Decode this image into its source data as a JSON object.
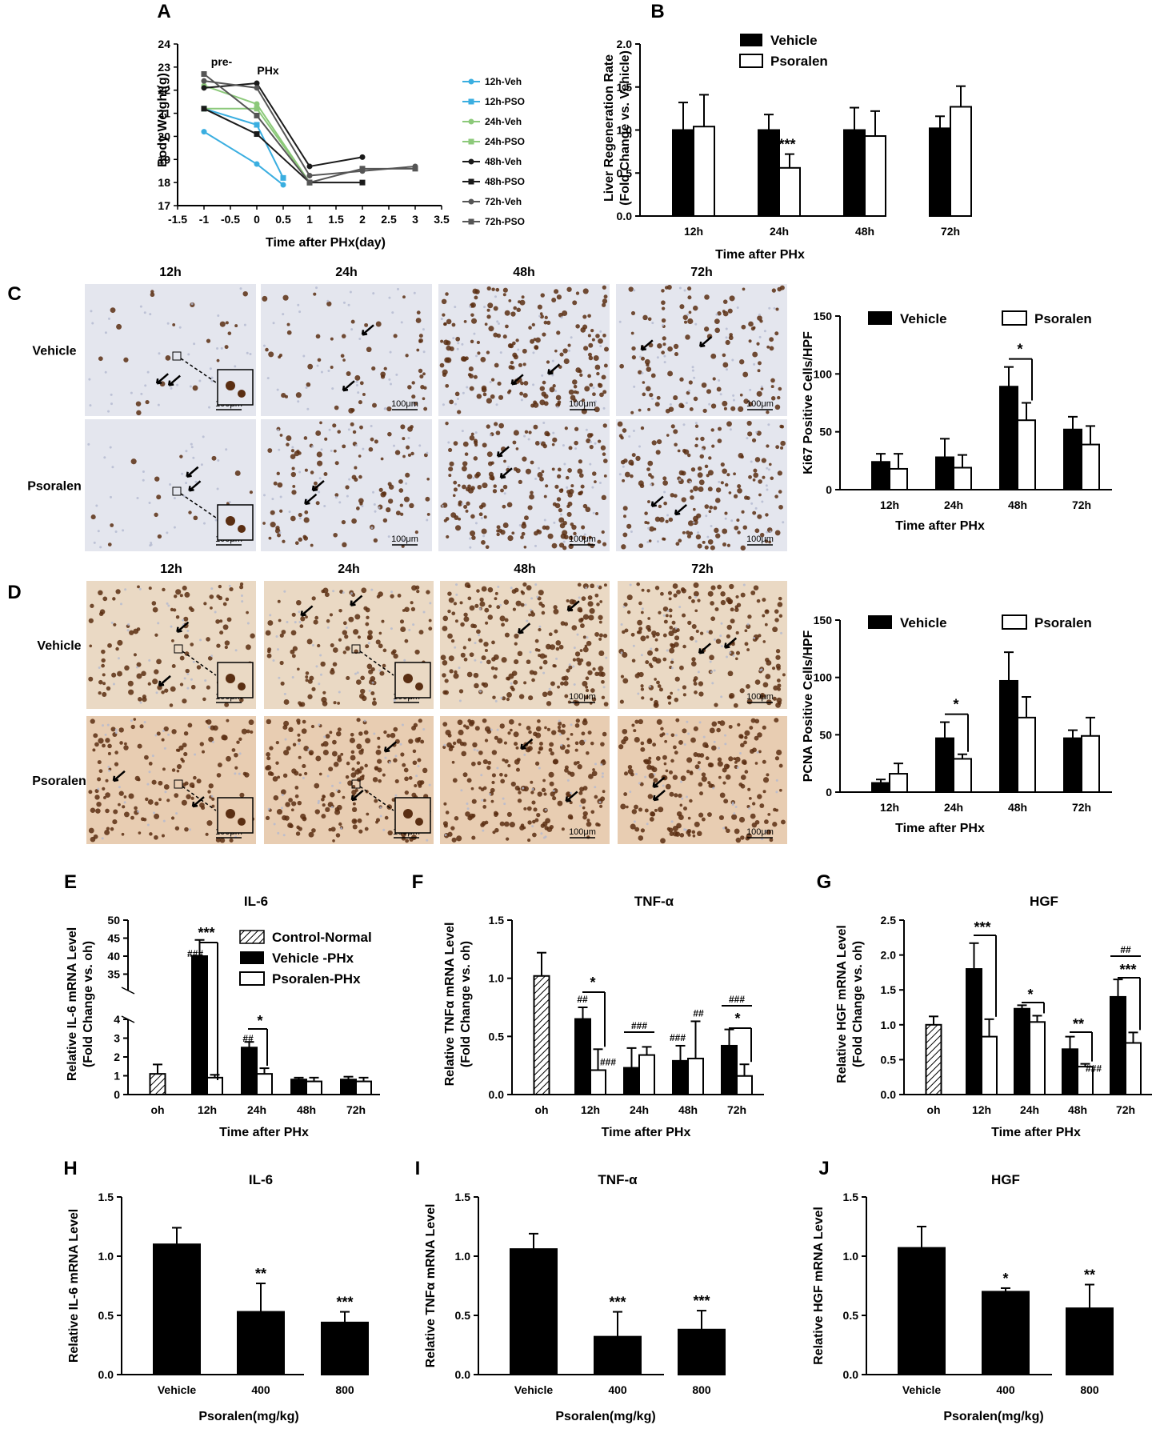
{
  "panels": {
    "A": "A",
    "B": "B",
    "C": "C",
    "D": "D",
    "E": "E",
    "F": "F",
    "G": "G",
    "H": "H",
    "I": "I",
    "J": "J"
  },
  "micrographs": {
    "time_labels": [
      "12h",
      "24h",
      "48h",
      "72h"
    ],
    "row_labels": [
      "Vehicle",
      "Psoralen"
    ],
    "scale_bar_label": "100μm",
    "colors": {
      "C_bg": "#e4e6ee",
      "D_bg_vehicle": "#ead9c4",
      "D_bg_psoralen": "#e8cdb2",
      "nucleus": "#5a2e12",
      "hepatocyte": "#b3b9cf"
    }
  },
  "chart_data": [
    {
      "id": "A",
      "type": "line",
      "xlabel": "Time after PHx(day)",
      "ylabel": "Body Weight(g)",
      "xlim": [
        -1.5,
        3.5
      ],
      "ylim": [
        17,
        24
      ],
      "xticks": [
        "-1.5",
        "-1",
        "-0.5",
        "0",
        "0.5",
        "1",
        "1.5",
        "2",
        "2.5",
        "3",
        "3.5"
      ],
      "yticks": [
        "17",
        "18",
        "19",
        "20",
        "21",
        "22",
        "23",
        "24"
      ],
      "annotations": [
        "pre-",
        "PHx"
      ],
      "series": [
        {
          "name": "12h-Veh",
          "color": "#3aaee0",
          "marker": "circle",
          "x": [
            -1,
            0,
            0.5
          ],
          "y": [
            20.2,
            18.8,
            17.9
          ]
        },
        {
          "name": "12h-PSO",
          "color": "#3aaee0",
          "marker": "square",
          "x": [
            -1,
            0,
            0.5
          ],
          "y": [
            21.2,
            20.5,
            18.2
          ]
        },
        {
          "name": "24h-Veh",
          "color": "#8cc97a",
          "marker": "circle",
          "x": [
            -1,
            0,
            1
          ],
          "y": [
            22.2,
            21.4,
            18.0
          ]
        },
        {
          "name": "24h-PSO",
          "color": "#8cc97a",
          "marker": "square",
          "x": [
            -1,
            0,
            1
          ],
          "y": [
            21.2,
            21.2,
            18.0
          ]
        },
        {
          "name": "48h-Veh",
          "color": "#1a1a1a",
          "marker": "circle",
          "x": [
            -1,
            0,
            1,
            2
          ],
          "y": [
            22.1,
            22.3,
            18.7,
            19.1
          ]
        },
        {
          "name": "48h-PSO",
          "color": "#1a1a1a",
          "marker": "square",
          "x": [
            -1,
            0,
            1,
            2
          ],
          "y": [
            21.2,
            20.1,
            18.0,
            18.0
          ]
        },
        {
          "name": "72h-Veh",
          "color": "#555555",
          "marker": "circle",
          "x": [
            -1,
            0,
            1,
            2,
            3
          ],
          "y": [
            22.4,
            22.1,
            18.3,
            18.5,
            18.7
          ]
        },
        {
          "name": "72h-PSO",
          "color": "#555555",
          "marker": "square",
          "x": [
            -1,
            0,
            1,
            2,
            3
          ],
          "y": [
            22.7,
            20.9,
            18.0,
            18.6,
            18.6
          ]
        }
      ]
    },
    {
      "id": "B",
      "type": "bar",
      "xlabel": "Time after PHx",
      "ylabel": "Liver Regeneration Rate\n(Fold Change vs. Vehicle)",
      "categories": [
        "12h",
        "24h",
        "48h",
        "72h"
      ],
      "ylim": [
        0,
        2.0
      ],
      "yticks": [
        "0.0",
        "0.5",
        "1.0",
        "1.5",
        "2.0"
      ],
      "series": [
        {
          "name": "Vehicle",
          "fill": "#000000",
          "values": [
            1.0,
            1.0,
            1.0,
            1.02
          ],
          "errors": [
            0.32,
            0.18,
            0.26,
            0.14
          ]
        },
        {
          "name": "Psoralen",
          "fill": "#ffffff",
          "values": [
            1.04,
            0.56,
            0.93,
            1.27
          ],
          "errors": [
            0.37,
            0.16,
            0.29,
            0.24
          ]
        }
      ],
      "significance": [
        {
          "category": "24h",
          "text": "***"
        }
      ]
    },
    {
      "id": "C",
      "type": "bar",
      "xlabel": "Time after PHx",
      "ylabel": "Ki67 Positive Cells/HPF",
      "categories": [
        "12h",
        "24h",
        "48h",
        "72h"
      ],
      "ylim": [
        0,
        150
      ],
      "yticks": [
        "0",
        "50",
        "100",
        "150"
      ],
      "series": [
        {
          "name": "Vehicle",
          "fill": "#000000",
          "values": [
            24,
            28,
            89,
            52
          ],
          "errors": [
            7,
            16,
            17,
            11
          ]
        },
        {
          "name": "Psoralen",
          "fill": "#ffffff",
          "values": [
            18,
            19,
            60,
            39
          ],
          "errors": [
            13,
            11,
            15,
            16
          ]
        }
      ],
      "significance": [
        {
          "category": "48h",
          "text": "*"
        }
      ]
    },
    {
      "id": "D",
      "type": "bar",
      "xlabel": "Time after PHx",
      "ylabel": "PCNA Positive Cells/HPF",
      "categories": [
        "12h",
        "24h",
        "48h",
        "72h"
      ],
      "ylim": [
        0,
        150
      ],
      "yticks": [
        "0",
        "50",
        "100",
        "150"
      ],
      "series": [
        {
          "name": "Vehicle",
          "fill": "#000000",
          "values": [
            8,
            47,
            97,
            47
          ],
          "errors": [
            3,
            14,
            25,
            7
          ]
        },
        {
          "name": "Psoralen",
          "fill": "#ffffff",
          "values": [
            16,
            29,
            65,
            49
          ],
          "errors": [
            9,
            4,
            18,
            16
          ]
        }
      ],
      "significance": [
        {
          "category": "24h",
          "text": "*"
        }
      ]
    },
    {
      "id": "E",
      "type": "bar",
      "title": "IL-6",
      "xlabel": "Time after PHx",
      "ylabel": "Relative IL-6 mRNA Level\n(Fold Change vs. oh)",
      "categories": [
        "oh",
        "12h",
        "24h",
        "48h",
        "72h"
      ],
      "axis_break": {
        "lower": [
          0,
          4
        ],
        "upper": [
          4,
          50
        ]
      },
      "yticks": [
        "0",
        "1",
        "2",
        "3",
        "4",
        "35",
        "40",
        "45",
        "50"
      ],
      "series": [
        {
          "name": "Control-Normal",
          "fill": "hatch",
          "values": [
            1.1,
            null,
            null,
            null,
            null
          ],
          "errors": [
            0.5,
            null,
            null,
            null,
            null
          ]
        },
        {
          "name": "Vehicle -PHx",
          "fill": "#000000",
          "values": [
            null,
            40,
            2.5,
            0.8,
            0.8
          ],
          "errors": [
            null,
            4.5,
            0.3,
            0.1,
            0.15
          ]
        },
        {
          "name": "Psoralen-PHx",
          "fill": "#ffffff",
          "values": [
            null,
            0.9,
            1.1,
            0.7,
            0.7
          ],
          "errors": [
            null,
            0.15,
            0.3,
            0.2,
            0.2
          ]
        }
      ],
      "significance": [
        {
          "category": "12h",
          "text": "***",
          "hash": "###"
        },
        {
          "category": "24h",
          "text": "*",
          "hash": "##"
        }
      ]
    },
    {
      "id": "F",
      "type": "bar",
      "title": "TNF-α",
      "xlabel": "Time after PHx",
      "ylabel": "Relative TNFα mRNA Level\n(Fold Change vs. oh)",
      "categories": [
        "oh",
        "12h",
        "24h",
        "48h",
        "72h"
      ],
      "ylim": [
        0,
        1.5
      ],
      "yticks": [
        "0.0",
        "0.5",
        "1.0",
        "1.5"
      ],
      "series": [
        {
          "name": "Control",
          "fill": "hatch",
          "values": [
            1.02,
            null,
            null,
            null,
            null
          ],
          "errors": [
            0.2,
            null,
            null,
            null,
            null
          ]
        },
        {
          "name": "Vehicle",
          "fill": "#000000",
          "values": [
            null,
            0.65,
            0.23,
            0.29,
            0.42
          ],
          "errors": [
            null,
            0.1,
            0.17,
            0.13,
            0.14
          ]
        },
        {
          "name": "Psoralen",
          "fill": "#ffffff",
          "values": [
            null,
            0.21,
            0.34,
            0.31,
            0.16
          ],
          "errors": [
            null,
            0.18,
            0.07,
            0.32,
            0.1
          ]
        }
      ],
      "hash_labels": [
        {
          "category": "12h",
          "vehicle": "##",
          "psoralen": "###",
          "star": "*"
        },
        {
          "category": "24h",
          "bar": "###"
        },
        {
          "category": "48h",
          "vehicle": "###",
          "psoralen": "##"
        },
        {
          "category": "72h",
          "bar": "###",
          "star": "*"
        }
      ]
    },
    {
      "id": "G",
      "type": "bar",
      "title": "HGF",
      "xlabel": "Time after PHx",
      "ylabel": "Relative HGF mRNA Level\n(Fold Change vs. oh)",
      "categories": [
        "oh",
        "12h",
        "24h",
        "48h",
        "72h"
      ],
      "ylim": [
        0,
        2.5
      ],
      "yticks": [
        "0.0",
        "0.5",
        "1.0",
        "1.5",
        "2.0",
        "2.5"
      ],
      "series": [
        {
          "name": "Control",
          "fill": "hatch",
          "values": [
            1.0,
            null,
            null,
            null,
            null
          ],
          "errors": [
            0.12,
            null,
            null,
            null,
            null
          ]
        },
        {
          "name": "Vehicle",
          "fill": "#000000",
          "values": [
            null,
            1.8,
            1.23,
            0.65,
            1.4
          ],
          "errors": [
            null,
            0.37,
            0.05,
            0.18,
            0.25
          ]
        },
        {
          "name": "Psoralen",
          "fill": "#ffffff",
          "values": [
            null,
            0.83,
            1.04,
            0.4,
            0.74
          ],
          "errors": [
            null,
            0.25,
            0.09,
            0.04,
            0.15
          ]
        }
      ],
      "significance": [
        {
          "category": "12h",
          "text": "***"
        },
        {
          "category": "24h",
          "text": "*"
        },
        {
          "category": "48h",
          "text": "**",
          "hash": "###"
        },
        {
          "category": "72h",
          "text": "***",
          "hash": "##"
        }
      ]
    },
    {
      "id": "H",
      "type": "bar",
      "title": "IL-6",
      "xlabel": "Psoralen(mg/kg)",
      "ylabel": "Relative IL-6 mRNA Level",
      "categories": [
        "Vehicle",
        "400",
        "800"
      ],
      "ylim": [
        0,
        1.5
      ],
      "yticks": [
        "0.0",
        "0.5",
        "1.0",
        "1.5"
      ],
      "values": [
        1.1,
        0.53,
        0.44
      ],
      "errors": [
        0.14,
        0.24,
        0.09
      ],
      "significance": [
        "",
        "**",
        "***"
      ]
    },
    {
      "id": "I",
      "type": "bar",
      "title": "TNF-α",
      "xlabel": "Psoralen(mg/kg)",
      "ylabel": "Relative TNFα mRNA Level",
      "categories": [
        "Vehicle",
        "400",
        "800"
      ],
      "ylim": [
        0,
        1.5
      ],
      "yticks": [
        "0.0",
        "0.5",
        "1.0",
        "1.5"
      ],
      "values": [
        1.06,
        0.32,
        0.38
      ],
      "errors": [
        0.13,
        0.21,
        0.16
      ],
      "significance": [
        "",
        "***",
        "***"
      ]
    },
    {
      "id": "J",
      "type": "bar",
      "title": "HGF",
      "xlabel": "Psoralen(mg/kg)",
      "ylabel": "Relative HGF mRNA Level",
      "categories": [
        "Vehicle",
        "400",
        "800"
      ],
      "ylim": [
        0,
        1.5
      ],
      "yticks": [
        "0.0",
        "0.5",
        "1.0",
        "1.5"
      ],
      "values": [
        1.07,
        0.7,
        0.56
      ],
      "errors": [
        0.18,
        0.03,
        0.2
      ],
      "significance": [
        "",
        "*",
        "**"
      ]
    }
  ]
}
